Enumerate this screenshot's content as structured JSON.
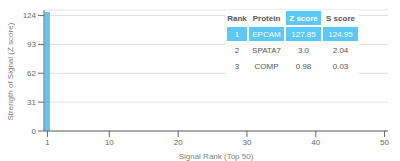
{
  "chart_data": {
    "type": "bar",
    "x": [
      1
    ],
    "values": [
      127.85
    ],
    "color": "#5bc8f5",
    "xlim": [
      0.5,
      50.5
    ],
    "ylim": [
      0,
      130
    ],
    "xticks": [
      1,
      10,
      20,
      30,
      40,
      50
    ],
    "yticks": [
      0,
      31,
      62,
      93,
      124
    ],
    "xlabel": "Signal Rank (Top 50)",
    "ylabel": "Strength of Signal (Z score)",
    "grid": true,
    "table": {
      "columns": [
        "Rank",
        "Protein",
        "Z score",
        "S score"
      ],
      "rows": [
        [
          "1",
          "EPCAM",
          "127.85",
          "124.95"
        ],
        [
          "2",
          "SPATA7",
          "3.0",
          "2.04"
        ],
        [
          "3",
          "COMP",
          "0.98",
          "0.03"
        ]
      ]
    }
  }
}
